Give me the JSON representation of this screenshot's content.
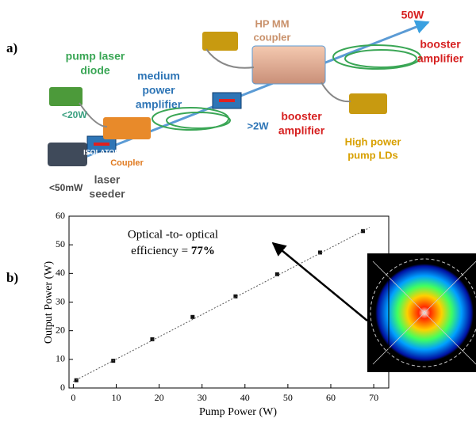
{
  "panel_a": {
    "tag": "a)",
    "labels": [
      {
        "lines": [
          "pump laser",
          "diode"
        ],
        "color": "#3aa655"
      },
      {
        "lines": [
          "<20W"
        ],
        "color": "#3aa080"
      },
      {
        "lines": [
          "medium",
          "power",
          "amplifier"
        ],
        "color": "#2e75b6"
      },
      {
        "lines": [
          "HP MM",
          "coupler"
        ],
        "color": "#c9916b"
      },
      {
        "lines": [
          "50W"
        ],
        "color": "#d62020"
      },
      {
        "lines": [
          "booster",
          "amplifier"
        ],
        "color": "#d62020"
      },
      {
        "lines": [
          ">2W"
        ],
        "color": "#2e75b6"
      },
      {
        "lines": [
          "booster",
          "amplifier"
        ],
        "color": "#d62020"
      },
      {
        "lines": [
          "High power",
          "pump LDs"
        ],
        "color": "#d8a000"
      },
      {
        "lines": [
          "ISOLATOR"
        ],
        "color": "#ffffff"
      },
      {
        "lines": [
          "Coupler"
        ],
        "color": "#e07a20"
      },
      {
        "lines": [
          "<50mW"
        ],
        "color": "#444444"
      },
      {
        "lines": [
          "laser",
          "seeder"
        ],
        "color": "#555555"
      }
    ]
  },
  "chart_data": {
    "type": "scatter",
    "tag": "b)",
    "x_label": "Pump Power (W)",
    "y_label": "Output Power (W)",
    "annotation": {
      "line1": "Optical -to- optical",
      "line2": "efficiency = ",
      "bold": "77%"
    },
    "series": [
      {
        "x": [
          0.7,
          9.3,
          18.4,
          27.8,
          37.8,
          47.5,
          57.5,
          67.5
        ],
        "values": [
          2.7,
          9.5,
          17,
          24.8,
          32,
          39.7,
          47.3,
          54.8
        ],
        "color": "#111111",
        "style": "markers"
      },
      {
        "x": [
          0,
          69
        ],
        "values": [
          2.3,
          56
        ],
        "color": "#555555",
        "style": "dotted"
      }
    ],
    "xlim": [
      -1,
      73.5
    ],
    "ylim": [
      0,
      60
    ],
    "xticks": [
      0,
      10,
      20,
      30,
      40,
      50,
      60,
      70
    ],
    "yticks": [
      0,
      10,
      20,
      30,
      40,
      50,
      60
    ]
  }
}
